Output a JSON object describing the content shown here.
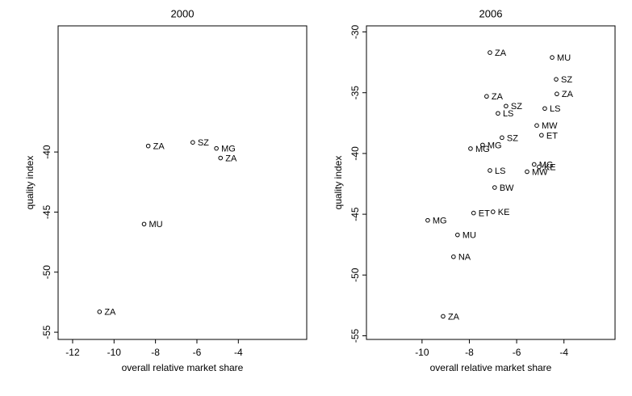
{
  "chart_data": [
    {
      "type": "scatter",
      "title": "2000",
      "x_label": "overall relative market share",
      "y_label": "quality index",
      "x": [
        -8.35,
        -6.2,
        -5.06,
        -4.86,
        -8.55,
        -10.7
      ],
      "y": [
        -39.5,
        -39.2,
        -39.7,
        -40.5,
        -46,
        -53.3
      ],
      "labels": [
        "ZA",
        "SZ",
        "MG",
        "ZA",
        "MU",
        "ZA"
      ],
      "color": "#000000",
      "xlim": [
        -12.7,
        -0.7
      ],
      "ylim": [
        -55.6,
        -29.5
      ],
      "xticks": [
        -12,
        -10,
        -8,
        -6,
        -4
      ],
      "yticks": [
        -55,
        -50,
        -45,
        -40
      ]
    },
    {
      "type": "scatter",
      "title": "2006",
      "x_label": "overall relative market share",
      "y_label": "quality index",
      "x": [
        -7.13,
        -4.5,
        -4.33,
        -4.3,
        -7.27,
        -6.45,
        -4.81,
        -6.79,
        -5.15,
        -4.95,
        -6.62,
        -7.44,
        -7.95,
        -5.26,
        -5.05,
        -5.56,
        -7.13,
        -6.93,
        -7.0,
        -7.82,
        -9.76,
        -8.5,
        -8.67,
        -9.11
      ],
      "y": [
        -31.7,
        -32.1,
        -33.9,
        -35.1,
        -35.3,
        -36.1,
        -36.3,
        -36.7,
        -37.7,
        -38.5,
        -38.7,
        -39.3,
        -39.6,
        -40.9,
        -41.1,
        -41.5,
        -41.4,
        -42.8,
        -44.8,
        -44.9,
        -45.5,
        -46.7,
        -48.5,
        -53.4
      ],
      "labels": [
        "ZA",
        "MU",
        "SZ",
        "ZA",
        "ZA",
        "SZ",
        "LS",
        "LS",
        "MW",
        "ET",
        "SZ",
        "MG",
        "MG",
        "MG",
        "KE",
        "MW",
        "LS",
        "BW",
        "KE",
        "ET",
        "MG",
        "MU",
        "NA",
        "ZA"
      ],
      "color": "#000000",
      "xlim": [
        -12.35,
        -1.84
      ],
      "ylim": [
        -55.3,
        -29.5
      ],
      "xticks": [
        -10,
        -8,
        -6,
        -4
      ],
      "yticks": [
        -55,
        -50,
        -45,
        -40,
        -35,
        -30
      ]
    }
  ]
}
